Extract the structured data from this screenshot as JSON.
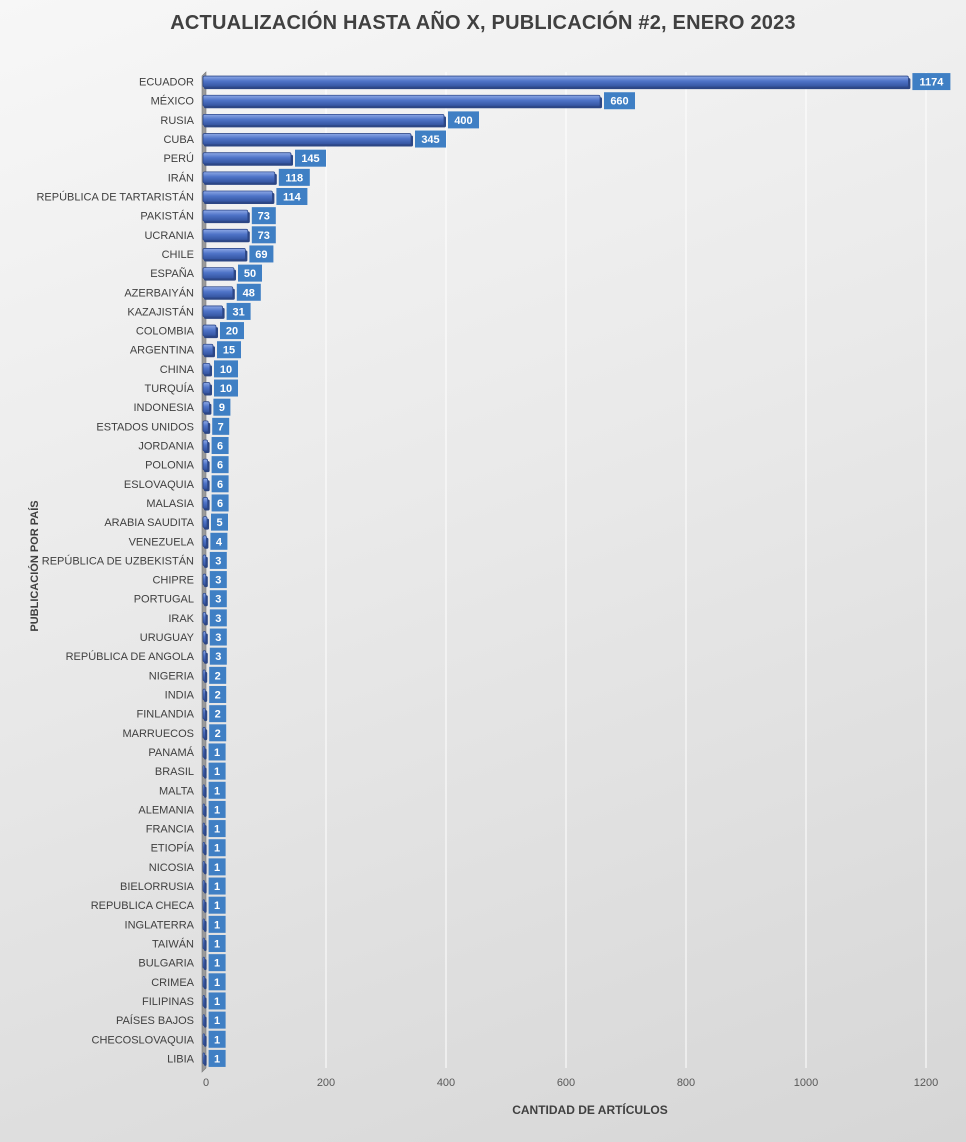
{
  "chart_data": {
    "type": "bar",
    "orientation": "horizontal",
    "title": "ACTUALIZACIÓN HASTA AÑO X, PUBLICACIÓN #2, ENERO 2023",
    "xlabel": "CANTIDAD DE ARTÍCULOS",
    "ylabel": "PUBLICACIÓN POR PAÍS",
    "xlim": [
      0,
      1200
    ],
    "xticks": [
      0,
      200,
      400,
      600,
      800,
      1000,
      1200
    ],
    "grid": "vertical",
    "legend": "none",
    "bar_color": "#4f74c8",
    "label_bg_color": "#3f7fc4",
    "categories": [
      "ECUADOR",
      "MÉXICO",
      "RUSIA",
      "CUBA",
      "PERÚ",
      "IRÁN",
      "REPÚBLICA DE TARTARISTÁN",
      "PAKISTÁN",
      "UCRANIA",
      "CHILE",
      "ESPAÑA",
      "AZERBAIYÁN",
      "KAZAJISTÁN",
      "COLOMBIA",
      "ARGENTINA",
      "CHINA",
      "TURQUÍA",
      "INDONESIA",
      "ESTADOS UNIDOS",
      "JORDANIA",
      "POLONIA",
      "ESLOVAQUIA",
      "MALASIA",
      "ARABIA SAUDITA",
      "VENEZUELA",
      "REPÚBLICA DE UZBEKISTÁN",
      "CHIPRE",
      "PORTUGAL",
      "IRAK",
      "URUGUAY",
      "REPÚBLICA DE ANGOLA",
      "NIGERIA",
      "INDIA",
      "FINLANDIA",
      "MARRUECOS",
      "PANAMÁ",
      "BRASIL",
      "MALTA",
      "ALEMANIA",
      "FRANCIA",
      "ETIOPÍA",
      "NICOSIA",
      "BIELORRUSIA",
      "REPUBLICA CHECA",
      "INGLATERRA",
      "TAIWÁN",
      "BULGARIA",
      "CRIMEA",
      "FILIPINAS",
      "PAÍSES BAJOS",
      "CHECOSLOVAQUIA",
      "LIBIA"
    ],
    "values": [
      1174,
      660,
      400,
      345,
      145,
      118,
      114,
      73,
      73,
      69,
      50,
      48,
      31,
      20,
      15,
      10,
      10,
      9,
      7,
      6,
      6,
      6,
      6,
      5,
      4,
      3,
      3,
      3,
      3,
      3,
      3,
      2,
      2,
      2,
      2,
      1,
      1,
      1,
      1,
      1,
      1,
      1,
      1,
      1,
      1,
      1,
      1,
      1,
      1,
      1,
      1,
      1
    ]
  }
}
